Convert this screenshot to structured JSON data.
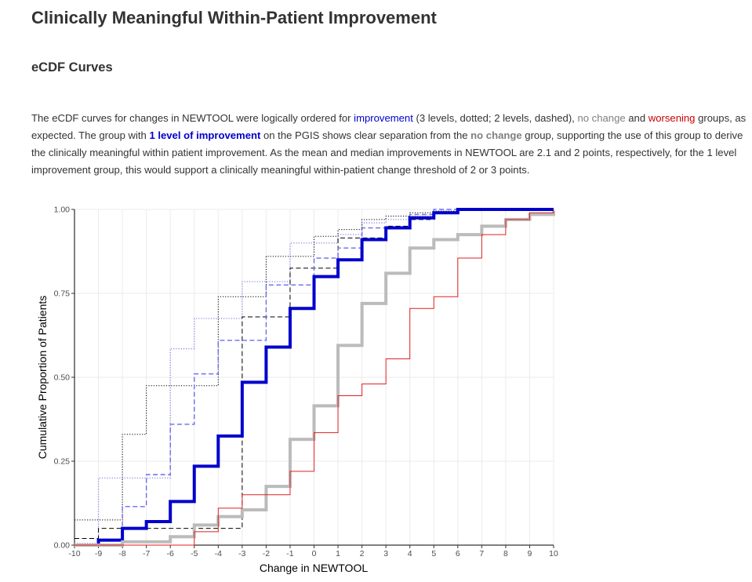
{
  "page": {
    "title": "Clinically Meaningful Within-Patient Improvement",
    "section": "eCDF Curves",
    "description": [
      "The eCDF curves for changes in NEWTOOL were logically ordered for ",
      "improvement",
      " (3 levels, dotted; 2 levels, dashed), ",
      "no change",
      " and ",
      "worsening",
      " groups, as expected. The group with ",
      "1 level of improvement",
      " on the PGIS shows clear separation from the ",
      "no change",
      " group, supporting the use of this group to derive the clinically meaningful within patient improvement. As the mean and median improvements in NEWTOOL are 2.1 and 2 points, respectively, for the 1 level improvement group, this would support a clinically meaningful within-patient change threshold of 2 or 3 points."
    ]
  },
  "colors": {
    "improvement": "#0000cc",
    "improvement_light": "#6a6af0",
    "no_change": "#bbbbbb",
    "worsening": "#dd2222",
    "text_no_change": "#7f7f7f",
    "text_worsening": "#cc0000"
  },
  "chart_data": {
    "type": "line",
    "step": true,
    "title": "",
    "xlabel": "Change in NEWTOOL",
    "ylabel": "Cumulative Proportion of Patients",
    "xlim": [
      -10,
      10
    ],
    "ylim": [
      0,
      1
    ],
    "xticks": [
      -10,
      -9,
      -8,
      -7,
      -6,
      -5,
      -4,
      -3,
      -2,
      -1,
      0,
      1,
      2,
      3,
      4,
      5,
      6,
      7,
      8,
      9,
      10
    ],
    "xtick_labels": [
      "-10",
      "-9",
      "-8",
      "-7",
      "-6",
      "-5",
      "-4",
      "-3",
      "-2",
      "-1",
      "0",
      "1",
      "2",
      "3",
      "4",
      "5",
      "6",
      "7",
      "8",
      "9",
      "10"
    ],
    "yticks": [
      0,
      0.25,
      0.5,
      0.75,
      1
    ],
    "ytick_labels": [
      "0.00",
      "0.25",
      "0.50",
      "0.75",
      "1.00"
    ],
    "grid": true,
    "legend": "none",
    "x": [
      -10,
      -9,
      -8,
      -7,
      -6,
      -5,
      -4,
      -3,
      -2,
      -1,
      0,
      1,
      2,
      3,
      4,
      5,
      6,
      7,
      8,
      9,
      10
    ],
    "series": [
      {
        "style": "dotted",
        "color": "#000000",
        "width": 1,
        "values": [
          0.075,
          0.075,
          0.33,
          0.475,
          0.475,
          0.475,
          0.74,
          0.74,
          0.86,
          0.86,
          0.92,
          0.94,
          0.97,
          0.98,
          0.99,
          0.995,
          1.0,
          1.0,
          1.0,
          1.0,
          1.0
        ]
      },
      {
        "style": "dotted",
        "color": "#8f8fe6",
        "width": 1.4,
        "values": [
          0.005,
          0.2,
          0.2,
          0.2,
          0.585,
          0.675,
          0.675,
          0.785,
          0.785,
          0.9,
          0.9,
          0.925,
          0.96,
          0.97,
          0.98,
          0.99,
          1.0,
          1.0,
          1.0,
          1.0,
          1.0
        ]
      },
      {
        "style": "dashed",
        "color": "#000000",
        "width": 1,
        "values": [
          0.02,
          0.05,
          0.05,
          0.05,
          0.05,
          0.05,
          0.05,
          0.68,
          0.68,
          0.825,
          0.825,
          0.915,
          0.915,
          0.95,
          0.97,
          0.99,
          1.0,
          1.0,
          1.0,
          1.0,
          1.0
        ]
      },
      {
        "style": "dashed",
        "color": "#6a6af0",
        "width": 1.4,
        "values": [
          0.0,
          0.015,
          0.115,
          0.21,
          0.36,
          0.51,
          0.61,
          0.61,
          0.775,
          0.775,
          0.855,
          0.885,
          0.945,
          0.945,
          0.985,
          1.0,
          1.0,
          1.0,
          1.0,
          1.0,
          1.0
        ]
      },
      {
        "style": "solid",
        "color": "#0000cc",
        "width": 4,
        "values": [
          0.0,
          0.015,
          0.05,
          0.07,
          0.13,
          0.235,
          0.325,
          0.485,
          0.59,
          0.705,
          0.8,
          0.85,
          0.91,
          0.945,
          0.975,
          0.99,
          1.0,
          1.0,
          1.0,
          1.0,
          1.0
        ]
      },
      {
        "style": "solid",
        "color": "#bbbbbb",
        "width": 4,
        "values": [
          0.0,
          0.0,
          0.01,
          0.01,
          0.025,
          0.06,
          0.085,
          0.105,
          0.175,
          0.315,
          0.415,
          0.595,
          0.72,
          0.81,
          0.885,
          0.91,
          0.925,
          0.95,
          0.97,
          0.985,
          0.995
        ]
      },
      {
        "style": "solid",
        "color": "#dd2222",
        "width": 1,
        "values": [
          0.0,
          0.0,
          0.0,
          0.0,
          0.0,
          0.04,
          0.11,
          0.15,
          0.15,
          0.22,
          0.335,
          0.445,
          0.48,
          0.555,
          0.705,
          0.74,
          0.855,
          0.925,
          0.97,
          0.99,
          1.0
        ]
      }
    ]
  }
}
